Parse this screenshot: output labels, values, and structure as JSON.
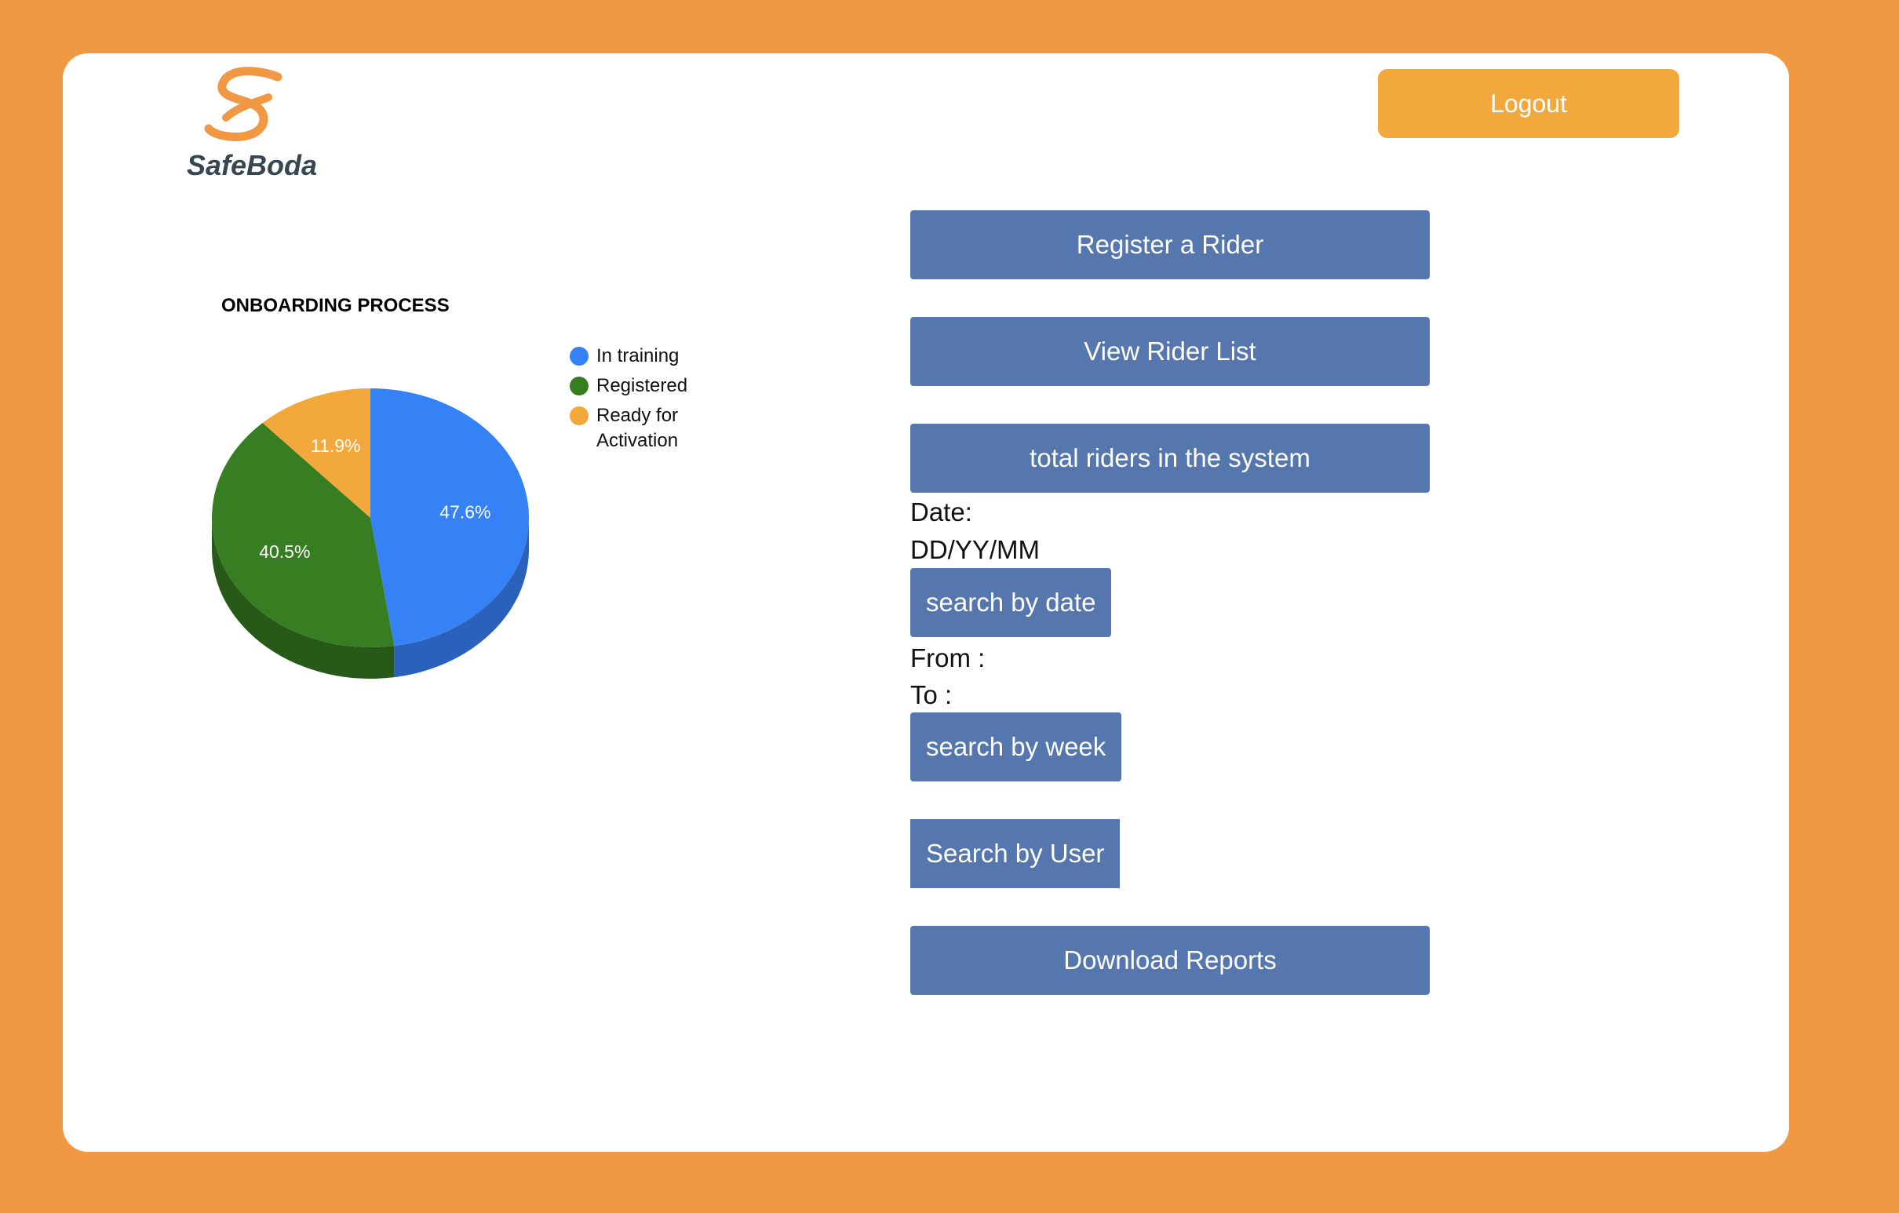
{
  "brand": {
    "name": "SafeBoda",
    "logo_icon": "safeboda-s-logo",
    "color": "#f19844"
  },
  "header": {
    "logout_label": "Logout"
  },
  "actions": {
    "register_rider": "Register a Rider",
    "view_rider_list": "View Rider List",
    "total_riders": "total riders in the system",
    "date_label": "Date:",
    "date_format": "DD/YY/MM",
    "search_by_date": "search by date",
    "from_label": "From :",
    "to_label": "To :",
    "search_by_week": "search by week",
    "search_by_user": "Search by User",
    "download_reports": "Download Reports"
  },
  "colors": {
    "background": "#f19844",
    "button": "#5677ae",
    "logout": "#f2a83b"
  },
  "chart_data": {
    "type": "pie",
    "title": "ONBOARDING PROCESS",
    "three_d": true,
    "legend_position": "right",
    "categories": [
      "In training",
      "Registered",
      "Ready for Activation"
    ],
    "values": [
      47.6,
      40.5,
      11.9
    ],
    "labels": [
      "47.6%",
      "40.5%",
      "11.9%"
    ],
    "colors": [
      "#3581f6",
      "#377e22",
      "#f2a83b"
    ],
    "side_colors": [
      "#2a62bb",
      "#275a18",
      "#c98a2e"
    ]
  }
}
